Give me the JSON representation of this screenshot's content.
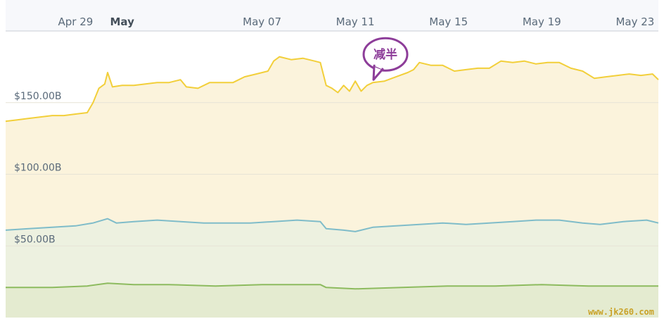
{
  "chart_data": {
    "type": "area",
    "title": "",
    "xlabel": "",
    "ylabel": "",
    "x_range": [
      "2020-04-26",
      "2020-05-24"
    ],
    "ylim": [
      0,
      200
    ],
    "y_ticks": [
      {
        "value": 50,
        "label": "$50.00B"
      },
      {
        "value": 100,
        "label": "$100.00B"
      },
      {
        "value": 150,
        "label": "$150.00B"
      }
    ],
    "x_ticks": [
      {
        "date": "2020-04-29",
        "label": "Apr 29",
        "bold": false
      },
      {
        "date": "2020-05-01",
        "label": "May",
        "bold": true
      },
      {
        "date": "2020-05-07",
        "label": "May 07",
        "bold": false
      },
      {
        "date": "2020-05-11",
        "label": "May 11",
        "bold": false
      },
      {
        "date": "2020-05-15",
        "label": "May 15",
        "bold": false
      },
      {
        "date": "2020-05-19",
        "label": "May 19",
        "bold": false
      },
      {
        "date": "2020-05-23",
        "label": "May 23",
        "bold": false
      }
    ],
    "grid": true,
    "legend": "none",
    "series": [
      {
        "color": "#f2cf3a",
        "fill": "#fbf3dc",
        "points": [
          [
            "2020-04-26T00:00",
            137
          ],
          [
            "2020-04-26T12:00",
            138
          ],
          [
            "2020-04-27T00:00",
            139
          ],
          [
            "2020-04-27T12:00",
            140
          ],
          [
            "2020-04-28T00:00",
            141
          ],
          [
            "2020-04-28T12:00",
            141
          ],
          [
            "2020-04-29T00:00",
            142
          ],
          [
            "2020-04-29T12:00",
            143
          ],
          [
            "2020-04-29T18:00",
            150
          ],
          [
            "2020-04-30T00:00",
            160
          ],
          [
            "2020-04-30T06:00",
            163
          ],
          [
            "2020-04-30T09:00",
            171
          ],
          [
            "2020-04-30T14:00",
            161
          ],
          [
            "2020-05-01T00:00",
            162
          ],
          [
            "2020-05-01T12:00",
            162
          ],
          [
            "2020-05-02T00:00",
            163
          ],
          [
            "2020-05-02T12:00",
            164
          ],
          [
            "2020-05-03T00:00",
            164
          ],
          [
            "2020-05-03T12:00",
            166
          ],
          [
            "2020-05-03T18:00",
            161
          ],
          [
            "2020-05-04T06:00",
            160
          ],
          [
            "2020-05-04T18:00",
            164
          ],
          [
            "2020-05-05T06:00",
            164
          ],
          [
            "2020-05-05T18:00",
            164
          ],
          [
            "2020-05-06T06:00",
            168
          ],
          [
            "2020-05-06T18:00",
            170
          ],
          [
            "2020-05-07T06:00",
            172
          ],
          [
            "2020-05-07T12:00",
            179
          ],
          [
            "2020-05-07T18:00",
            182
          ],
          [
            "2020-05-08T06:00",
            180
          ],
          [
            "2020-05-08T18:00",
            181
          ],
          [
            "2020-05-09T06:00",
            179
          ],
          [
            "2020-05-09T12:00",
            178
          ],
          [
            "2020-05-09T18:00",
            162
          ],
          [
            "2020-05-10T00:00",
            160
          ],
          [
            "2020-05-10T06:00",
            157
          ],
          [
            "2020-05-10T12:00",
            162
          ],
          [
            "2020-05-10T18:00",
            158
          ],
          [
            "2020-05-11T00:00",
            165
          ],
          [
            "2020-05-11T06:00",
            158
          ],
          [
            "2020-05-11T12:00",
            162
          ],
          [
            "2020-05-11T18:00",
            164
          ],
          [
            "2020-05-12T06:00",
            165
          ],
          [
            "2020-05-12T18:00",
            168
          ],
          [
            "2020-05-13T06:00",
            171
          ],
          [
            "2020-05-13T12:00",
            173
          ],
          [
            "2020-05-13T18:00",
            178
          ],
          [
            "2020-05-14T06:00",
            176
          ],
          [
            "2020-05-14T18:00",
            176
          ],
          [
            "2020-05-15T06:00",
            172
          ],
          [
            "2020-05-15T18:00",
            173
          ],
          [
            "2020-05-16T06:00",
            174
          ],
          [
            "2020-05-16T18:00",
            174
          ],
          [
            "2020-05-17T06:00",
            179
          ],
          [
            "2020-05-17T18:00",
            178
          ],
          [
            "2020-05-18T06:00",
            179
          ],
          [
            "2020-05-18T18:00",
            177
          ],
          [
            "2020-05-19T06:00",
            178
          ],
          [
            "2020-05-19T18:00",
            178
          ],
          [
            "2020-05-20T06:00",
            174
          ],
          [
            "2020-05-20T18:00",
            172
          ],
          [
            "2020-05-21T06:00",
            167
          ],
          [
            "2020-05-21T18:00",
            168
          ],
          [
            "2020-05-22T06:00",
            169
          ],
          [
            "2020-05-22T18:00",
            170
          ],
          [
            "2020-05-23T06:00",
            169
          ],
          [
            "2020-05-23T18:00",
            170
          ],
          [
            "2020-05-24T00:00",
            166
          ]
        ]
      },
      {
        "color": "#7fbcc9",
        "fill": "#edf1e0",
        "points": [
          [
            "2020-04-26T00:00",
            61
          ],
          [
            "2020-04-27T00:00",
            62
          ],
          [
            "2020-04-28T00:00",
            63
          ],
          [
            "2020-04-29T00:00",
            64
          ],
          [
            "2020-04-29T18:00",
            66
          ],
          [
            "2020-04-30T09:00",
            69
          ],
          [
            "2020-04-30T18:00",
            66
          ],
          [
            "2020-05-01T12:00",
            67
          ],
          [
            "2020-05-02T12:00",
            68
          ],
          [
            "2020-05-03T12:00",
            67
          ],
          [
            "2020-05-04T12:00",
            66
          ],
          [
            "2020-05-05T12:00",
            66
          ],
          [
            "2020-05-06T12:00",
            66
          ],
          [
            "2020-05-07T12:00",
            67
          ],
          [
            "2020-05-08T12:00",
            68
          ],
          [
            "2020-05-09T12:00",
            67
          ],
          [
            "2020-05-09T18:00",
            62
          ],
          [
            "2020-05-10T12:00",
            61
          ],
          [
            "2020-05-11T00:00",
            60
          ],
          [
            "2020-05-11T18:00",
            63
          ],
          [
            "2020-05-12T18:00",
            64
          ],
          [
            "2020-05-13T18:00",
            65
          ],
          [
            "2020-05-14T18:00",
            66
          ],
          [
            "2020-05-15T18:00",
            65
          ],
          [
            "2020-05-16T18:00",
            66
          ],
          [
            "2020-05-17T18:00",
            67
          ],
          [
            "2020-05-18T18:00",
            68
          ],
          [
            "2020-05-19T18:00",
            68
          ],
          [
            "2020-05-20T18:00",
            66
          ],
          [
            "2020-05-21T12:00",
            65
          ],
          [
            "2020-05-22T12:00",
            67
          ],
          [
            "2020-05-23T12:00",
            68
          ],
          [
            "2020-05-24T00:00",
            66
          ]
        ]
      },
      {
        "color": "#8dbb5f",
        "fill": "#e4ebd0",
        "points": [
          [
            "2020-04-26T00:00",
            21
          ],
          [
            "2020-04-28T00:00",
            21
          ],
          [
            "2020-04-29T12:00",
            22
          ],
          [
            "2020-04-30T09:00",
            24
          ],
          [
            "2020-05-01T12:00",
            23
          ],
          [
            "2020-05-03T00:00",
            23
          ],
          [
            "2020-05-05T00:00",
            22
          ],
          [
            "2020-05-07T00:00",
            23
          ],
          [
            "2020-05-09T12:00",
            23
          ],
          [
            "2020-05-09T18:00",
            21
          ],
          [
            "2020-05-11T00:00",
            20
          ],
          [
            "2020-05-13T00:00",
            21
          ],
          [
            "2020-05-15T00:00",
            22
          ],
          [
            "2020-05-17T00:00",
            22
          ],
          [
            "2020-05-19T00:00",
            23
          ],
          [
            "2020-05-21T00:00",
            22
          ],
          [
            "2020-05-22T12:00",
            22
          ],
          [
            "2020-05-24T00:00",
            22
          ]
        ]
      }
    ],
    "annotations": [
      {
        "date": "2020-05-11T18:00",
        "value": 165,
        "text": "减半",
        "color": "#8d3d99"
      }
    ],
    "watermark": "www.jk260.com"
  }
}
